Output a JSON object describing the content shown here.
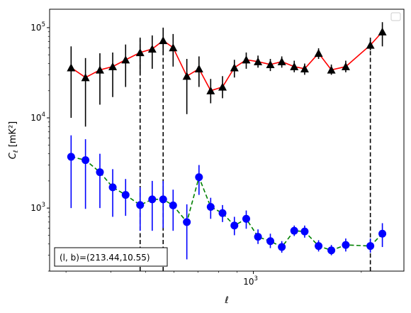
{
  "chart_data": {
    "type": "scatter",
    "title": "",
    "xlabel": "ℓ",
    "ylabel": "C",
    "ylabel_sub": "ℓ",
    "ylabel_unit": "[mK²]",
    "xscale": "log",
    "yscale": "log",
    "xlim": [
      270,
      2630
    ],
    "ylim": [
      200,
      160000
    ],
    "xticks": [
      {
        "value": 1000,
        "base": "10",
        "exp": "3"
      }
    ],
    "yticks": [
      {
        "value": 1000,
        "base": "10",
        "exp": "3"
      },
      {
        "value": 10000,
        "base": "10",
        "exp": "4"
      },
      {
        "value": 100000,
        "base": "10",
        "exp": "5"
      }
    ],
    "grid": false,
    "legend": "top-right, empty",
    "annotation": "(l, b)=(213.44,10.55)",
    "vlines": [
      {
        "x": 483,
        "color": "#000000",
        "style": "dashed",
        "ymin": 200,
        "ymax": 82000
      },
      {
        "x": 560,
        "color": "#000000",
        "style": "dashed",
        "ymin": 200,
        "ymax": 82000
      },
      {
        "x": 2120,
        "color": "#000000",
        "style": "dashed",
        "ymin": 200,
        "ymax": 82000
      }
    ],
    "series": [
      {
        "marker": "triangle",
        "color": "#000000",
        "line_color": "#ff0000",
        "line_style": "solid",
        "errorbar_color": "#000000",
        "points": [
          {
            "x": 310,
            "y": 36000,
            "lo": 10000,
            "hi": 62000
          },
          {
            "x": 340,
            "y": 28000,
            "lo": 8000,
            "hi": 46000
          },
          {
            "x": 373,
            "y": 34000,
            "lo": 14000,
            "hi": 52000
          },
          {
            "x": 405,
            "y": 37000,
            "lo": 17000,
            "hi": 53000
          },
          {
            "x": 440,
            "y": 44000,
            "lo": 22000,
            "hi": 65000
          },
          {
            "x": 483,
            "y": 53000,
            "lo": 30000,
            "hi": 75000
          },
          {
            "x": 522,
            "y": 58000,
            "lo": 35000,
            "hi": 82000
          },
          {
            "x": 560,
            "y": 72000,
            "lo": 50000,
            "hi": 100000
          },
          {
            "x": 597,
            "y": 60000,
            "lo": 37000,
            "hi": 85000
          },
          {
            "x": 652,
            "y": 29000,
            "lo": 11000,
            "hi": 45000
          },
          {
            "x": 705,
            "y": 35000,
            "lo": 22000,
            "hi": 48000
          },
          {
            "x": 760,
            "y": 20000,
            "lo": 14500,
            "hi": 27000
          },
          {
            "x": 820,
            "y": 22000,
            "lo": 16500,
            "hi": 29000
          },
          {
            "x": 885,
            "y": 36000,
            "lo": 28000,
            "hi": 44000
          },
          {
            "x": 955,
            "y": 44000,
            "lo": 35000,
            "hi": 53000
          },
          {
            "x": 1030,
            "y": 42000,
            "lo": 36000,
            "hi": 49000
          },
          {
            "x": 1115,
            "y": 39000,
            "lo": 33000,
            "hi": 45000
          },
          {
            "x": 1200,
            "y": 42000,
            "lo": 36000,
            "hi": 48000
          },
          {
            "x": 1300,
            "y": 37000,
            "lo": 32000,
            "hi": 43000
          },
          {
            "x": 1390,
            "y": 35000,
            "lo": 30000,
            "hi": 40000
          },
          {
            "x": 1520,
            "y": 52000,
            "lo": 45000,
            "hi": 59000
          },
          {
            "x": 1650,
            "y": 34000,
            "lo": 30000,
            "hi": 39000
          },
          {
            "x": 1810,
            "y": 37000,
            "lo": 32000,
            "hi": 43000
          },
          {
            "x": 2120,
            "y": 64000,
            "lo": 56000,
            "hi": 73000
          },
          {
            "x": 2290,
            "y": 90000,
            "lo": 62000,
            "hi": 115000
          }
        ]
      },
      {
        "marker": "circle",
        "color": "#0000ff",
        "line_color": "#008000",
        "line_style": "dashed",
        "errorbar_color": "#0000ff",
        "points": [
          {
            "x": 310,
            "y": 3700,
            "lo": 1000,
            "hi": 6400
          },
          {
            "x": 340,
            "y": 3400,
            "lo": 980,
            "hi": 5800
          },
          {
            "x": 373,
            "y": 2500,
            "lo": 1000,
            "hi": 4000
          },
          {
            "x": 405,
            "y": 1700,
            "lo": 800,
            "hi": 2700
          },
          {
            "x": 440,
            "y": 1400,
            "lo": 820,
            "hi": 2100
          },
          {
            "x": 483,
            "y": 1080,
            "lo": 560,
            "hi": 1700
          },
          {
            "x": 522,
            "y": 1250,
            "lo": 560,
            "hi": 2000
          },
          {
            "x": 560,
            "y": 1250,
            "lo": 600,
            "hi": 2000
          },
          {
            "x": 597,
            "y": 1070,
            "lo": 560,
            "hi": 1600
          },
          {
            "x": 652,
            "y": 700,
            "lo": 270,
            "hi": 1100
          },
          {
            "x": 705,
            "y": 2200,
            "lo": 1400,
            "hi": 3000
          },
          {
            "x": 760,
            "y": 1030,
            "lo": 760,
            "hi": 1300
          },
          {
            "x": 820,
            "y": 880,
            "lo": 700,
            "hi": 1080
          },
          {
            "x": 885,
            "y": 640,
            "lo": 500,
            "hi": 800
          },
          {
            "x": 955,
            "y": 760,
            "lo": 590,
            "hi": 940
          },
          {
            "x": 1030,
            "y": 480,
            "lo": 400,
            "hi": 580
          },
          {
            "x": 1115,
            "y": 430,
            "lo": 360,
            "hi": 520
          },
          {
            "x": 1200,
            "y": 370,
            "lo": 320,
            "hi": 430
          },
          {
            "x": 1300,
            "y": 560,
            "lo": 490,
            "hi": 640
          },
          {
            "x": 1390,
            "y": 550,
            "lo": 470,
            "hi": 640
          },
          {
            "x": 1520,
            "y": 380,
            "lo": 330,
            "hi": 440
          },
          {
            "x": 1650,
            "y": 340,
            "lo": 300,
            "hi": 390
          },
          {
            "x": 1810,
            "y": 390,
            "lo": 330,
            "hi": 460
          },
          {
            "x": 2120,
            "y": 380,
            "lo": 320,
            "hi": 460
          },
          {
            "x": 2290,
            "y": 520,
            "lo": 370,
            "hi": 680
          }
        ]
      }
    ]
  }
}
